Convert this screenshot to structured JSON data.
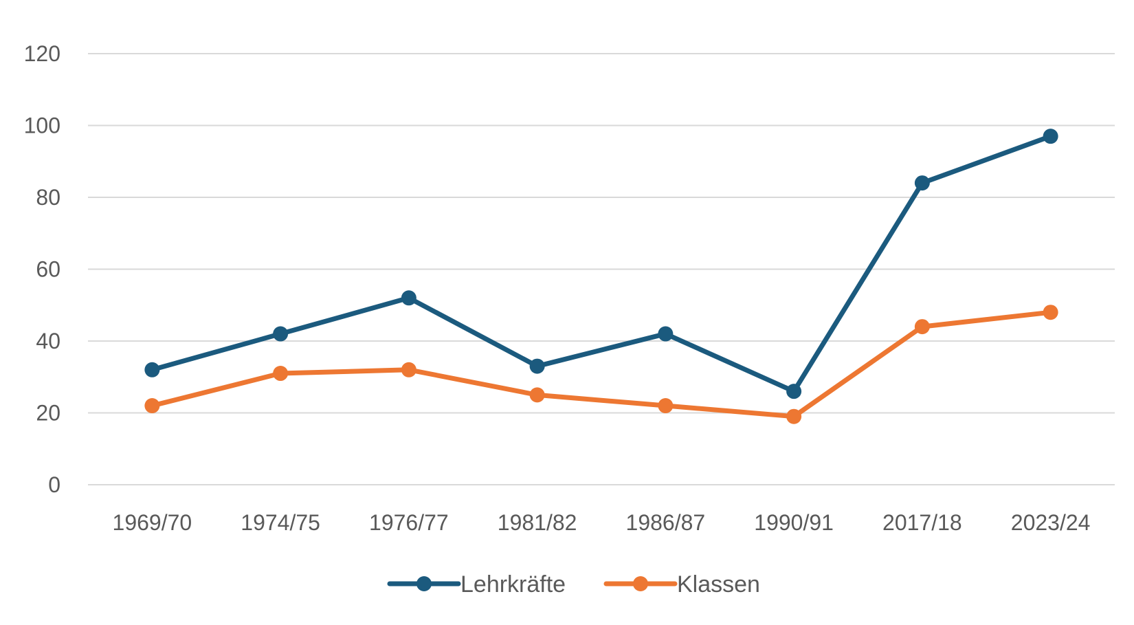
{
  "chart_data": {
    "type": "line",
    "title": "",
    "xlabel": "",
    "ylabel": "",
    "categories": [
      "1969/70",
      "1974/75",
      "1976/77",
      "1981/82",
      "1986/87",
      "1990/91",
      "2017/18",
      "2023/24"
    ],
    "ylim": [
      0,
      120
    ],
    "yticks": [
      "0",
      "20",
      "40",
      "60",
      "80",
      "100",
      "120"
    ],
    "grid": true,
    "legend_position": "bottom",
    "series": [
      {
        "name": "Lehrkräfte",
        "color": "#1b5a7e",
        "values": [
          32,
          42,
          52,
          33,
          42,
          26,
          84,
          97
        ]
      },
      {
        "name": "Klassen",
        "color": "#ed7732",
        "values": [
          22,
          31,
          32,
          25,
          22,
          19,
          44,
          48
        ]
      }
    ]
  }
}
